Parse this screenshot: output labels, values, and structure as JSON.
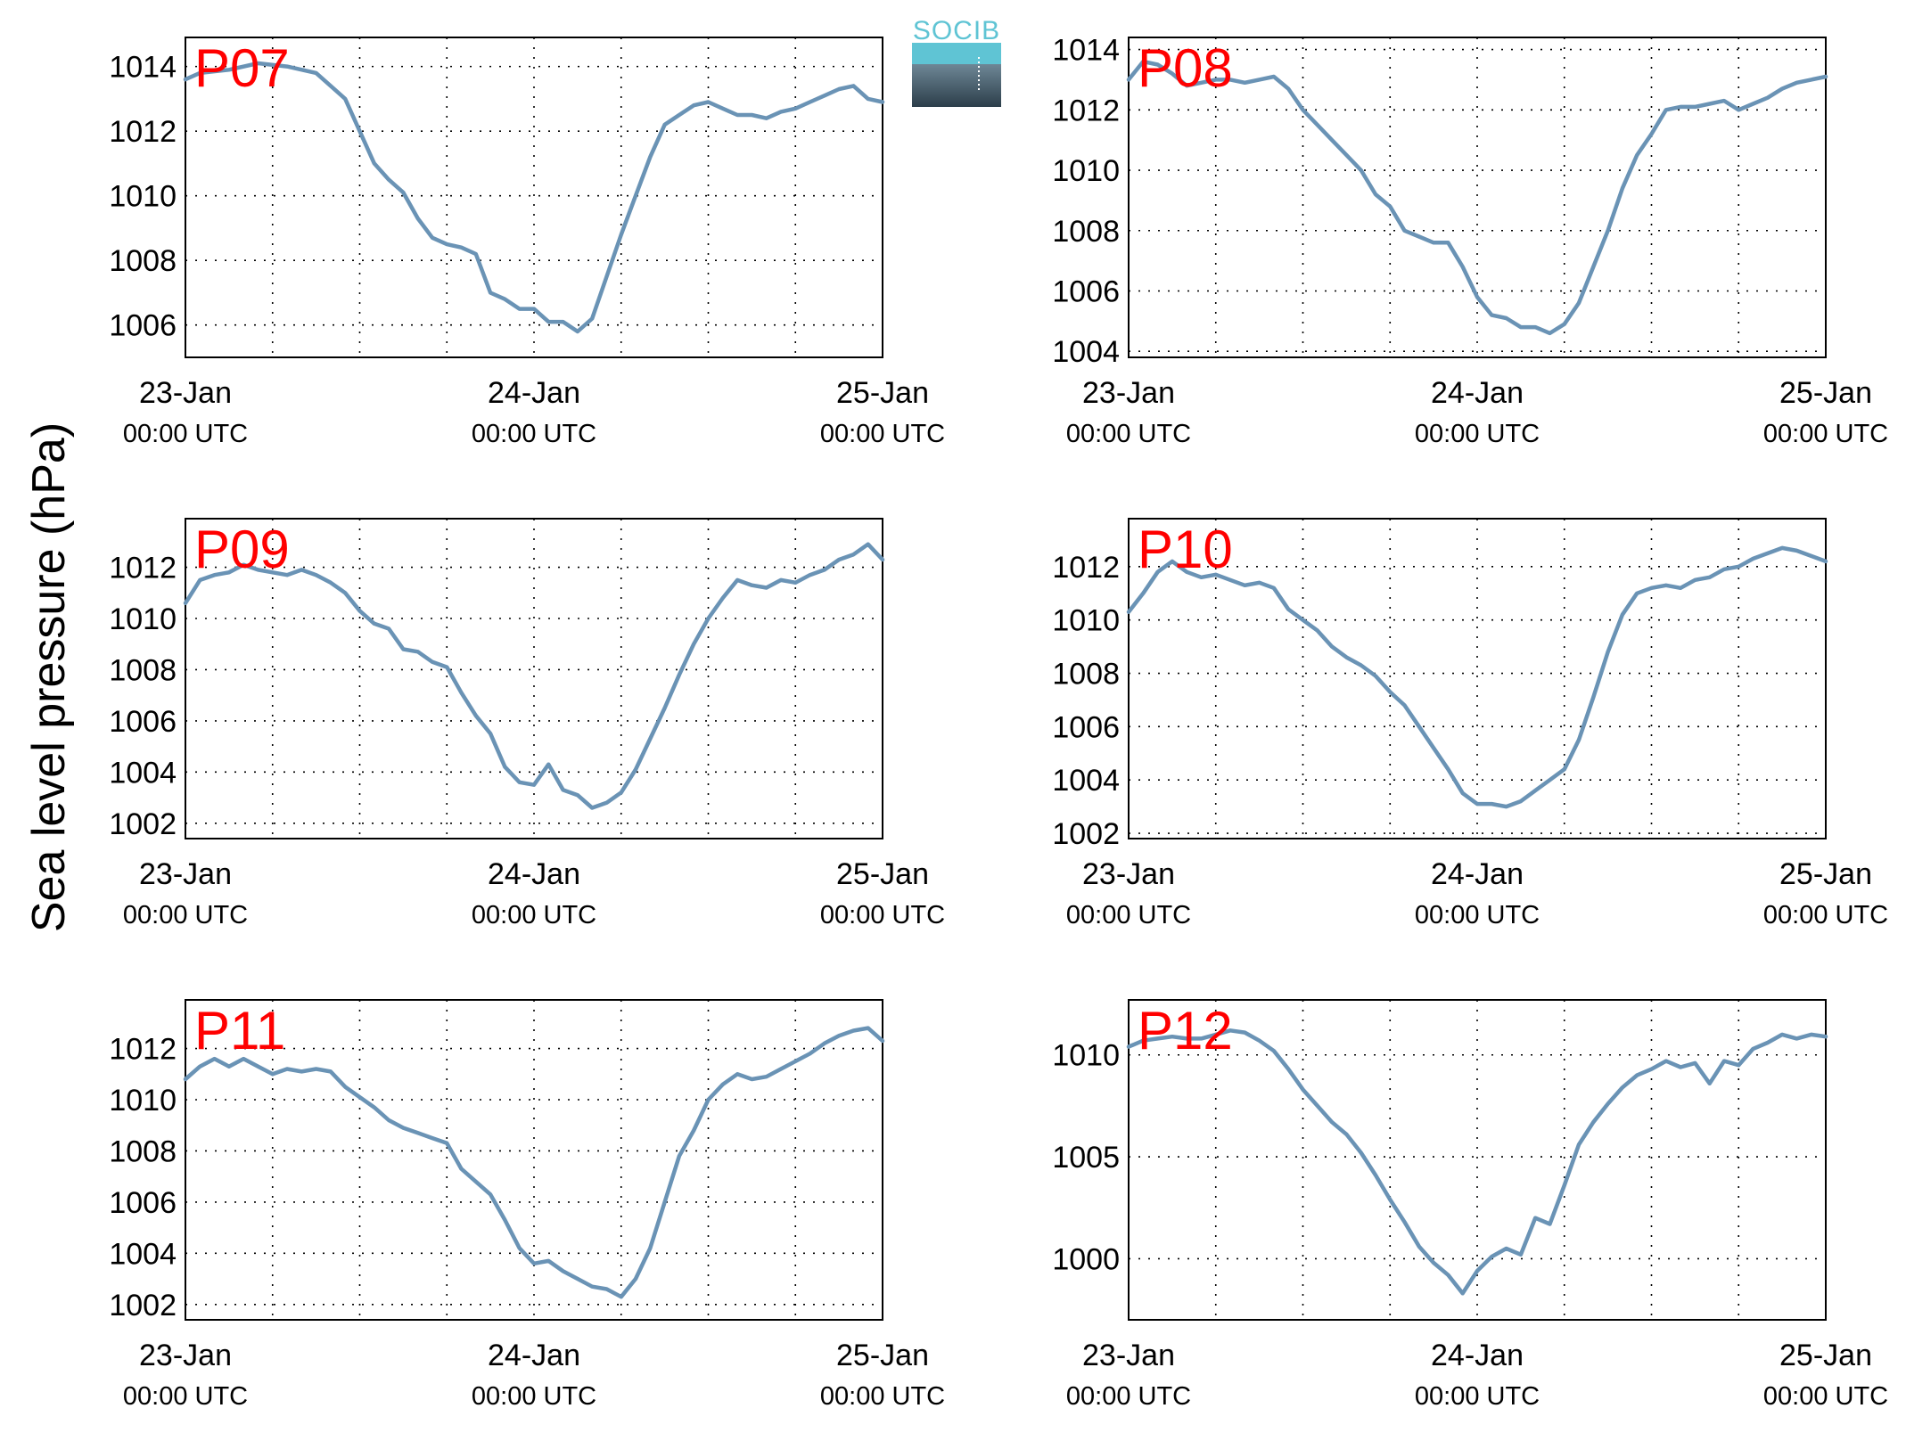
{
  "figure": {
    "ylabel": "Sea level pressure (hPa)",
    "logo_text": "SOCIB",
    "colors": {
      "line": "#6a93b5",
      "label": "#ff0000",
      "logo_top": "#5fc4d4",
      "logo_bottom": "#2c3e4a"
    }
  },
  "chart_data": [
    {
      "type": "line",
      "label": "P07",
      "x_ticks": [
        {
          "date": "23-Jan",
          "time": "00:00 UTC"
        },
        {
          "date": "24-Jan",
          "time": "00:00 UTC"
        },
        {
          "date": "25-Jan",
          "time": "00:00 UTC"
        }
      ],
      "xlim_hours": [
        0,
        48
      ],
      "ylim": [
        1005,
        1014.9
      ],
      "yticks": [
        1006,
        1008,
        1010,
        1012,
        1014
      ],
      "grid": true,
      "x": [
        0,
        1,
        3,
        5,
        7,
        9,
        11,
        12,
        13,
        14,
        15,
        16,
        17,
        18,
        19,
        20,
        21,
        22,
        23,
        24,
        25,
        26,
        27,
        28,
        29,
        30,
        31,
        32,
        33,
        34,
        35,
        36,
        37,
        38,
        39,
        40,
        41,
        42,
        43,
        44,
        45,
        46,
        47,
        48
      ],
      "values": [
        1013.6,
        1013.8,
        1013.9,
        1014.1,
        1014.0,
        1013.8,
        1013.0,
        1012.0,
        1011.0,
        1010.5,
        1010.1,
        1009.3,
        1008.7,
        1008.5,
        1008.4,
        1008.2,
        1007.0,
        1006.8,
        1006.5,
        1006.5,
        1006.1,
        1006.1,
        1005.8,
        1006.2,
        1007.5,
        1008.8,
        1010.0,
        1011.2,
        1012.2,
        1012.5,
        1012.8,
        1012.9,
        1012.7,
        1012.5,
        1012.5,
        1012.4,
        1012.6,
        1012.7,
        1012.9,
        1013.1,
        1013.3,
        1013.4,
        1013.0,
        1012.9
      ]
    },
    {
      "type": "line",
      "label": "P08",
      "x_ticks": [
        {
          "date": "23-Jan",
          "time": "00:00 UTC"
        },
        {
          "date": "24-Jan",
          "time": "00:00 UTC"
        },
        {
          "date": "25-Jan",
          "time": "00:00 UTC"
        }
      ],
      "xlim_hours": [
        0,
        48
      ],
      "ylim": [
        1003.8,
        1014.4
      ],
      "yticks": [
        1004,
        1006,
        1008,
        1010,
        1012,
        1014
      ],
      "grid": true,
      "x": [
        0,
        1,
        2,
        3,
        4,
        5,
        6,
        7,
        8,
        9,
        10,
        11,
        12,
        13,
        14,
        15,
        16,
        17,
        18,
        19,
        20,
        21,
        22,
        23,
        24,
        25,
        26,
        27,
        28,
        29,
        30,
        31,
        32,
        33,
        34,
        35,
        36,
        37,
        38,
        39,
        40,
        41,
        42,
        43,
        44,
        45,
        46,
        47,
        48
      ],
      "values": [
        1013.0,
        1013.6,
        1013.5,
        1013.2,
        1012.8,
        1012.9,
        1013.0,
        1013.0,
        1012.9,
        1013.0,
        1013.1,
        1012.7,
        1012.0,
        1011.5,
        1011.0,
        1010.5,
        1010.0,
        1009.2,
        1008.8,
        1008.0,
        1007.8,
        1007.6,
        1007.6,
        1006.8,
        1005.8,
        1005.2,
        1005.1,
        1004.8,
        1004.8,
        1004.6,
        1004.9,
        1005.6,
        1006.8,
        1008.0,
        1009.4,
        1010.5,
        1011.2,
        1012.0,
        1012.1,
        1012.1,
        1012.2,
        1012.3,
        1012.0,
        1012.2,
        1012.4,
        1012.7,
        1012.9,
        1013.0,
        1013.1
      ]
    },
    {
      "type": "line",
      "label": "P09",
      "x_ticks": [
        {
          "date": "23-Jan",
          "time": "00:00 UTC"
        },
        {
          "date": "24-Jan",
          "time": "00:00 UTC"
        },
        {
          "date": "25-Jan",
          "time": "00:00 UTC"
        }
      ],
      "xlim_hours": [
        0,
        48
      ],
      "ylim": [
        1001.4,
        1013.9
      ],
      "yticks": [
        1002,
        1004,
        1006,
        1008,
        1010,
        1012
      ],
      "grid": true,
      "x": [
        0,
        1,
        2,
        3,
        4,
        5,
        6,
        7,
        8,
        9,
        10,
        11,
        12,
        13,
        14,
        15,
        16,
        17,
        18,
        19,
        20,
        21,
        22,
        23,
        24,
        25,
        26,
        27,
        28,
        29,
        30,
        31,
        32,
        33,
        34,
        35,
        36,
        37,
        38,
        39,
        40,
        41,
        42,
        43,
        44,
        45,
        46,
        47,
        48
      ],
      "values": [
        1010.6,
        1011.5,
        1011.7,
        1011.8,
        1012.1,
        1011.9,
        1011.8,
        1011.7,
        1011.9,
        1011.7,
        1011.4,
        1011.0,
        1010.3,
        1009.8,
        1009.6,
        1008.8,
        1008.7,
        1008.3,
        1008.1,
        1007.1,
        1006.2,
        1005.5,
        1004.2,
        1003.6,
        1003.5,
        1004.3,
        1003.3,
        1003.1,
        1002.6,
        1002.8,
        1003.2,
        1004.1,
        1005.3,
        1006.5,
        1007.8,
        1009.0,
        1010.0,
        1010.8,
        1011.5,
        1011.3,
        1011.2,
        1011.5,
        1011.4,
        1011.7,
        1011.9,
        1012.3,
        1012.5,
        1012.9,
        1012.3
      ]
    },
    {
      "type": "line",
      "label": "P10",
      "x_ticks": [
        {
          "date": "23-Jan",
          "time": "00:00 UTC"
        },
        {
          "date": "24-Jan",
          "time": "00:00 UTC"
        },
        {
          "date": "25-Jan",
          "time": "00:00 UTC"
        }
      ],
      "xlim_hours": [
        0,
        48
      ],
      "ylim": [
        1001.8,
        1013.8
      ],
      "yticks": [
        1002,
        1004,
        1006,
        1008,
        1010,
        1012
      ],
      "grid": true,
      "x": [
        0,
        1,
        2,
        3,
        4,
        5,
        6,
        7,
        8,
        9,
        10,
        11,
        12,
        13,
        14,
        15,
        16,
        17,
        18,
        19,
        20,
        21,
        22,
        23,
        24,
        25,
        26,
        27,
        28,
        29,
        30,
        31,
        32,
        33,
        34,
        35,
        36,
        37,
        38,
        39,
        40,
        41,
        42,
        43,
        44,
        45,
        46,
        47,
        48
      ],
      "values": [
        1010.3,
        1011.0,
        1011.8,
        1012.2,
        1011.8,
        1011.6,
        1011.7,
        1011.5,
        1011.3,
        1011.4,
        1011.2,
        1010.4,
        1010.0,
        1009.6,
        1009.0,
        1008.6,
        1008.3,
        1007.9,
        1007.3,
        1006.8,
        1006.0,
        1005.2,
        1004.4,
        1003.5,
        1003.1,
        1003.1,
        1003.0,
        1003.2,
        1003.6,
        1004.0,
        1004.4,
        1005.5,
        1007.1,
        1008.8,
        1010.2,
        1011.0,
        1011.2,
        1011.3,
        1011.2,
        1011.5,
        1011.6,
        1011.9,
        1012.0,
        1012.3,
        1012.5,
        1012.7,
        1012.6,
        1012.4,
        1012.2
      ]
    },
    {
      "type": "line",
      "label": "P11",
      "x_ticks": [
        {
          "date": "23-Jan",
          "time": "00:00 UTC"
        },
        {
          "date": "24-Jan",
          "time": "00:00 UTC"
        },
        {
          "date": "25-Jan",
          "time": "00:00 UTC"
        }
      ],
      "xlim_hours": [
        0,
        48
      ],
      "ylim": [
        1001.4,
        1013.9
      ],
      "yticks": [
        1002,
        1004,
        1006,
        1008,
        1010,
        1012
      ],
      "grid": true,
      "x": [
        0,
        1,
        2,
        3,
        4,
        5,
        6,
        7,
        8,
        9,
        10,
        11,
        12,
        13,
        14,
        15,
        16,
        17,
        18,
        19,
        20,
        21,
        22,
        23,
        24,
        25,
        26,
        27,
        28,
        29,
        30,
        31,
        32,
        33,
        34,
        35,
        36,
        37,
        38,
        39,
        40,
        41,
        42,
        43,
        44,
        45,
        46,
        47,
        48
      ],
      "values": [
        1010.8,
        1011.3,
        1011.6,
        1011.3,
        1011.6,
        1011.3,
        1011.0,
        1011.2,
        1011.1,
        1011.2,
        1011.1,
        1010.5,
        1010.1,
        1009.7,
        1009.2,
        1008.9,
        1008.7,
        1008.5,
        1008.3,
        1007.3,
        1006.8,
        1006.3,
        1005.3,
        1004.2,
        1003.6,
        1003.7,
        1003.3,
        1003.0,
        1002.7,
        1002.6,
        1002.3,
        1003.0,
        1004.2,
        1006.0,
        1007.8,
        1008.8,
        1010.0,
        1010.6,
        1011.0,
        1010.8,
        1010.9,
        1011.2,
        1011.5,
        1011.8,
        1012.2,
        1012.5,
        1012.7,
        1012.8,
        1012.3
      ]
    },
    {
      "type": "line",
      "label": "P12",
      "x_ticks": [
        {
          "date": "23-Jan",
          "time": "00:00 UTC"
        },
        {
          "date": "24-Jan",
          "time": "00:00 UTC"
        },
        {
          "date": "25-Jan",
          "time": "00:00 UTC"
        }
      ],
      "xlim_hours": [
        0,
        48
      ],
      "ylim": [
        997,
        1012.7
      ],
      "yticks": [
        1000,
        1005,
        1010
      ],
      "grid": true,
      "x": [
        0,
        1,
        2,
        3,
        4,
        5,
        6,
        7,
        8,
        9,
        10,
        11,
        12,
        13,
        14,
        15,
        16,
        17,
        18,
        19,
        20,
        21,
        22,
        23,
        24,
        25,
        26,
        27,
        28,
        29,
        30,
        31,
        32,
        33,
        34,
        35,
        36,
        37,
        38,
        39,
        40,
        41,
        42,
        43,
        44,
        45,
        46,
        47,
        48
      ],
      "values": [
        1010.4,
        1010.7,
        1010.8,
        1010.9,
        1010.8,
        1010.8,
        1011.0,
        1011.2,
        1011.1,
        1010.7,
        1010.2,
        1009.3,
        1008.3,
        1007.5,
        1006.7,
        1006.1,
        1005.2,
        1004.1,
        1002.9,
        1001.8,
        1000.6,
        999.8,
        999.2,
        998.3,
        999.4,
        1000.1,
        1000.5,
        1000.2,
        1002.0,
        1001.7,
        1003.6,
        1005.6,
        1006.7,
        1007.6,
        1008.4,
        1009.0,
        1009.3,
        1009.7,
        1009.4,
        1009.6,
        1008.6,
        1009.7,
        1009.5,
        1010.3,
        1010.6,
        1011.0,
        1010.8,
        1011.0,
        1010.9
      ]
    }
  ]
}
